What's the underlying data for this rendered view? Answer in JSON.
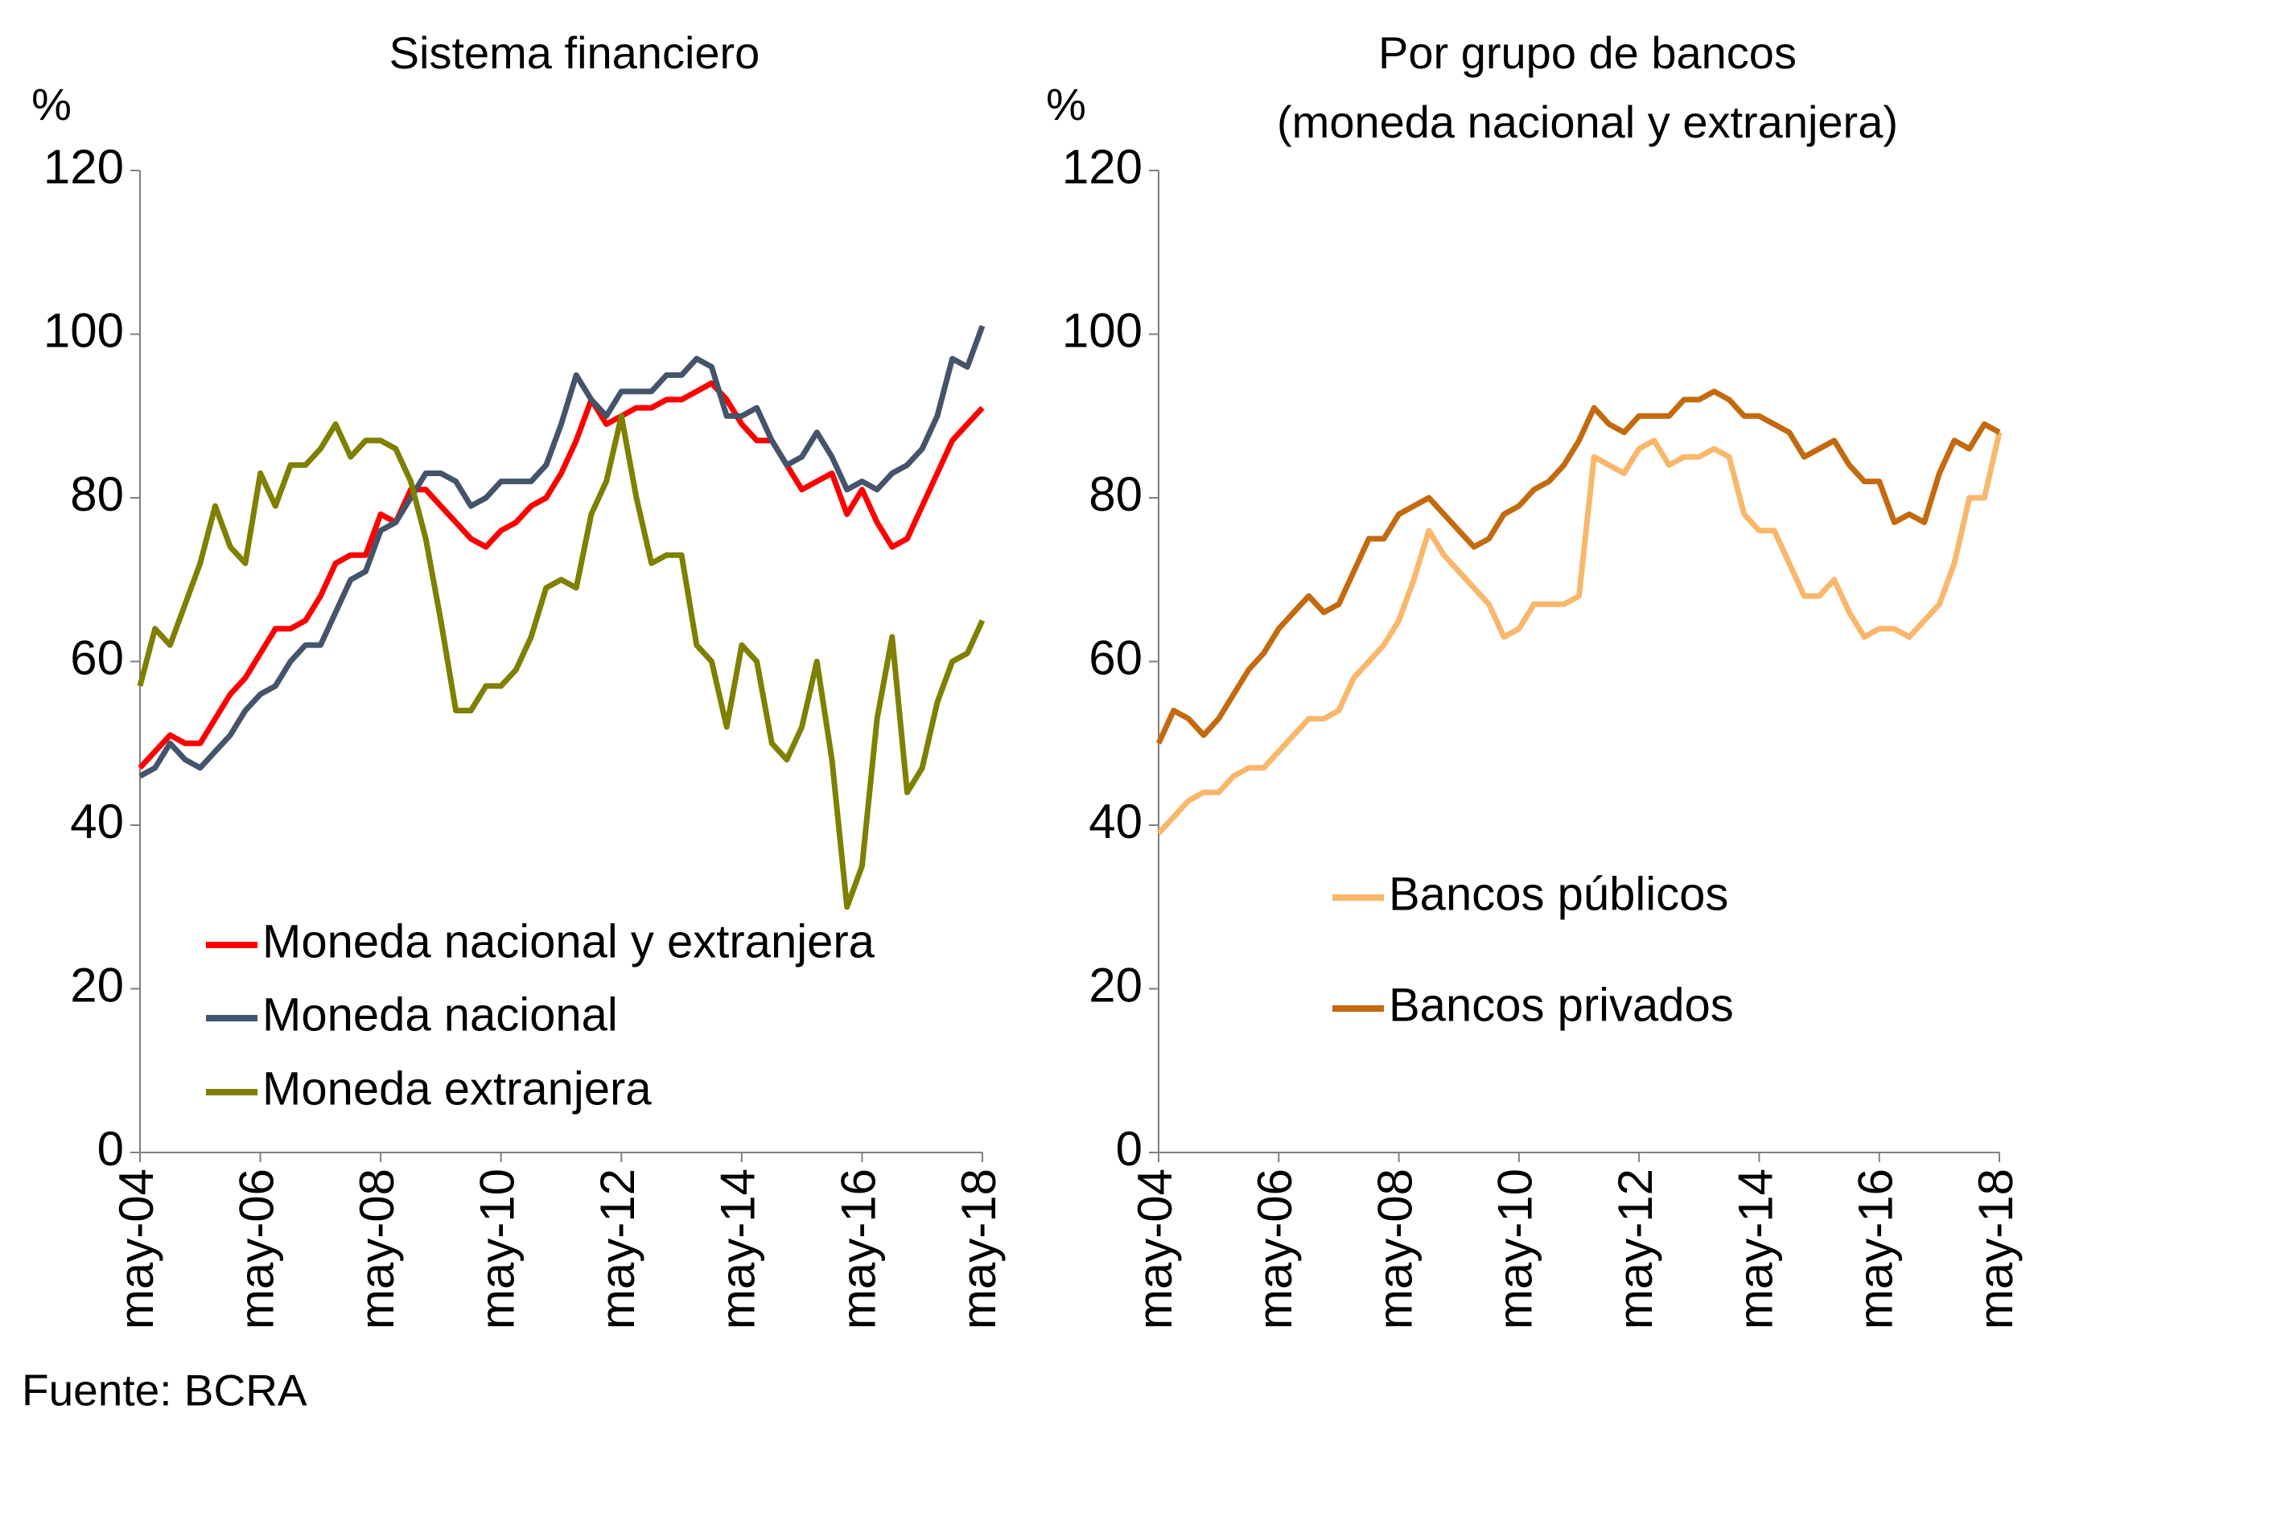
{
  "source": "Fuente: BCRA",
  "chart_data": [
    {
      "type": "line",
      "title": "Sistema financiero",
      "y_unit": "%",
      "categories": [
        "may-04",
        null,
        null,
        null,
        null,
        null,
        null,
        null,
        "may-06",
        null,
        null,
        null,
        null,
        null,
        null,
        null,
        "may-08",
        null,
        null,
        null,
        null,
        null,
        null,
        null,
        "may-10",
        null,
        null,
        null,
        null,
        null,
        null,
        null,
        "may-12",
        null,
        null,
        null,
        null,
        null,
        null,
        null,
        "may-14",
        null,
        null,
        null,
        null,
        null,
        null,
        null,
        "may-16",
        null,
        null,
        null,
        null,
        null,
        null,
        null,
        "may-18"
      ],
      "ylim": [
        0,
        120
      ],
      "yticks": [
        0,
        20,
        40,
        60,
        80,
        100,
        120
      ],
      "legend": "lower left",
      "series": [
        {
          "name": "Moneda nacional y extranjera",
          "color": "#ff0000",
          "values": [
            47,
            49,
            51,
            50,
            50,
            53,
            56,
            58,
            61,
            64,
            64,
            65,
            68,
            72,
            73,
            73,
            78,
            77,
            81,
            81,
            79,
            77,
            75,
            74,
            76,
            77,
            79,
            80,
            83,
            87,
            92,
            89,
            90,
            91,
            91,
            92,
            92,
            93,
            94,
            92,
            89,
            87,
            87,
            84,
            81,
            82,
            83,
            78,
            81,
            77,
            74,
            75,
            79,
            83,
            87,
            89,
            91
          ]
        },
        {
          "name": "Moneda nacional",
          "color": "#44546a",
          "values": [
            46,
            47,
            50,
            48,
            47,
            49,
            51,
            54,
            56,
            57,
            60,
            62,
            62,
            66,
            70,
            71,
            76,
            77,
            80,
            83,
            83,
            82,
            79,
            80,
            82,
            82,
            82,
            84,
            89,
            95,
            92,
            90,
            93,
            93,
            93,
            95,
            95,
            97,
            96,
            90,
            90,
            91,
            87,
            84,
            85,
            88,
            85,
            81,
            82,
            81,
            83,
            84,
            86,
            90,
            97,
            96,
            101
          ]
        },
        {
          "name": "Moneda extranjera",
          "color": "#7f7f00",
          "values": [
            57,
            64,
            62,
            67,
            72,
            79,
            74,
            72,
            83,
            79,
            84,
            84,
            86,
            89,
            85,
            87,
            87,
            86,
            82,
            75,
            65,
            54,
            54,
            57,
            57,
            59,
            63,
            69,
            70,
            69,
            78,
            82,
            90,
            80,
            72,
            73,
            73,
            62,
            60,
            52,
            62,
            60,
            50,
            48,
            52,
            60,
            48,
            30,
            35,
            53,
            63,
            44,
            47,
            55,
            60,
            61,
            65
          ]
        }
      ]
    },
    {
      "type": "line",
      "title": "Por grupo de bancos",
      "subtitle": "(moneda nacional y extranjera)",
      "y_unit": "%",
      "categories": [
        "may-04",
        null,
        null,
        null,
        null,
        null,
        null,
        null,
        "may-06",
        null,
        null,
        null,
        null,
        null,
        null,
        null,
        "may-08",
        null,
        null,
        null,
        null,
        null,
        null,
        null,
        "may-10",
        null,
        null,
        null,
        null,
        null,
        null,
        null,
        "may-12",
        null,
        null,
        null,
        null,
        null,
        null,
        null,
        "may-14",
        null,
        null,
        null,
        null,
        null,
        null,
        null,
        "may-16",
        null,
        null,
        null,
        null,
        null,
        null,
        null,
        "may-18"
      ],
      "ylim": [
        0,
        120
      ],
      "yticks": [
        0,
        20,
        40,
        60,
        80,
        100,
        120
      ],
      "legend": "center left",
      "series": [
        {
          "name": "Bancos públicos",
          "color": "#f9b76b",
          "values": [
            39,
            41,
            43,
            44,
            44,
            46,
            47,
            47,
            49,
            51,
            53,
            53,
            54,
            58,
            60,
            62,
            65,
            70,
            76,
            73,
            71,
            69,
            67,
            63,
            64,
            67,
            67,
            67,
            68,
            85,
            84,
            83,
            86,
            87,
            84,
            85,
            85,
            86,
            85,
            78,
            76,
            76,
            72,
            68,
            68,
            70,
            66,
            63,
            64,
            64,
            63,
            65,
            67,
            72,
            80,
            80,
            88
          ]
        },
        {
          "name": "Bancos privados",
          "color": "#c46a0e",
          "values": [
            50,
            54,
            53,
            51,
            53,
            56,
            59,
            61,
            64,
            66,
            68,
            66,
            67,
            71,
            75,
            75,
            78,
            79,
            80,
            78,
            76,
            74,
            75,
            78,
            79,
            81,
            82,
            84,
            87,
            91,
            89,
            88,
            90,
            90,
            90,
            92,
            92,
            93,
            92,
            90,
            90,
            89,
            88,
            85,
            86,
            87,
            84,
            82,
            82,
            77,
            78,
            77,
            83,
            87,
            86,
            89,
            88
          ]
        }
      ]
    }
  ]
}
